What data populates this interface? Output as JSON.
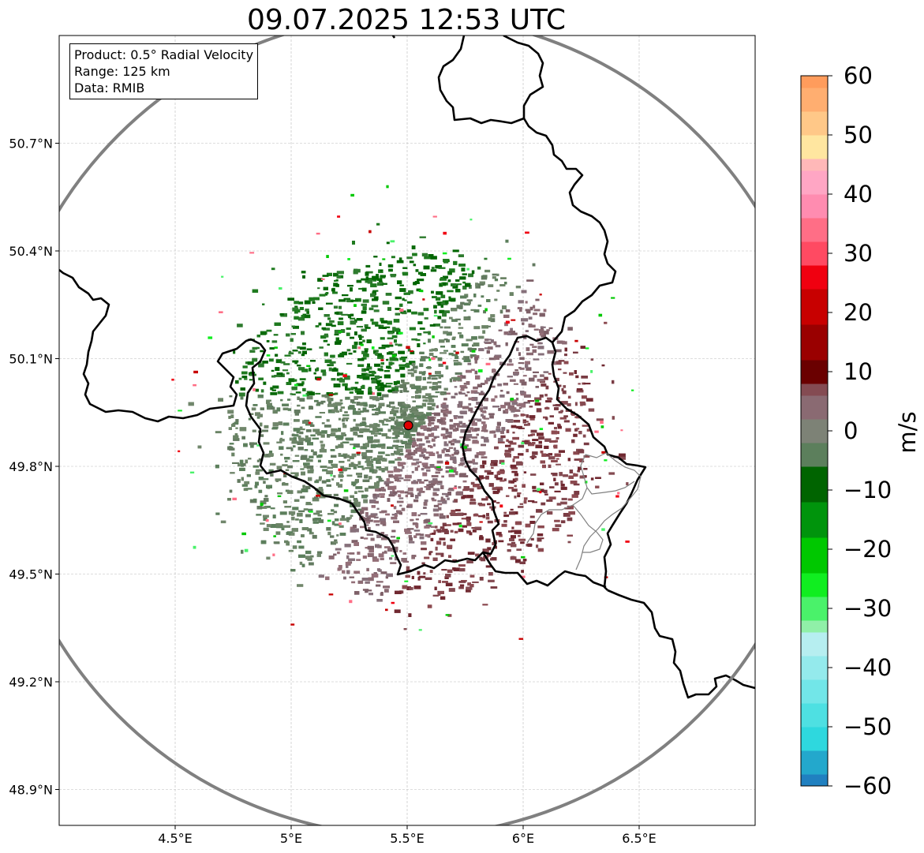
{
  "title": "09.07.2025 12:53 UTC",
  "info_box": {
    "product": "Product: 0.5° Radial Velocity",
    "range": "Range: 125 km",
    "data": "Data: RMIB"
  },
  "map": {
    "lon_range": [
      4.0,
      7.0
    ],
    "lat_range": [
      48.8,
      51.0
    ],
    "x_ticks": [
      {
        "lon": 4.5,
        "label": "4.5°E"
      },
      {
        "lon": 5.0,
        "label": "5°E"
      },
      {
        "lon": 5.5,
        "label": "5.5°E"
      },
      {
        "lon": 6.0,
        "label": "6°E"
      },
      {
        "lon": 6.5,
        "label": "6.5°E"
      }
    ],
    "y_ticks": [
      {
        "lat": 50.7,
        "label": "50.7°N"
      },
      {
        "lat": 50.4,
        "label": "50.4°N"
      },
      {
        "lat": 50.1,
        "label": "50.1°N"
      },
      {
        "lat": 49.8,
        "label": "49.8°N"
      },
      {
        "lat": 49.5,
        "label": "49.5°N"
      },
      {
        "lat": 49.2,
        "label": "49.2°N"
      },
      {
        "lat": 48.9,
        "label": "48.9°N"
      }
    ],
    "radar_site": {
      "lon": 5.505,
      "lat": 49.914
    },
    "range_km": 125
  },
  "colorbar": {
    "label": "m/s",
    "min": -60,
    "max": 60,
    "ticks": [
      {
        "value": 60,
        "label": "60"
      },
      {
        "value": 50,
        "label": "50"
      },
      {
        "value": 40,
        "label": "40"
      },
      {
        "value": 30,
        "label": "30"
      },
      {
        "value": 20,
        "label": "20"
      },
      {
        "value": 10,
        "label": "10"
      },
      {
        "value": 0,
        "label": "0"
      },
      {
        "value": -10,
        "label": "−10"
      },
      {
        "value": -20,
        "label": "−20"
      },
      {
        "value": -30,
        "label": "−30"
      },
      {
        "value": -40,
        "label": "−40"
      },
      {
        "value": -50,
        "label": "−50"
      },
      {
        "value": -60,
        "label": "−60"
      }
    ],
    "stops": [
      {
        "from": -60,
        "to": -58,
        "color": "#2080c0"
      },
      {
        "from": -58,
        "to": -54,
        "color": "#23a8cc"
      },
      {
        "from": -54,
        "to": -50,
        "color": "#2ed8de"
      },
      {
        "from": -50,
        "to": -46,
        "color": "#4ee0e2"
      },
      {
        "from": -46,
        "to": -42,
        "color": "#72e6e8"
      },
      {
        "from": -42,
        "to": -38,
        "color": "#94eaec"
      },
      {
        "from": -38,
        "to": -34,
        "color": "#b6eef0"
      },
      {
        "from": -34,
        "to": -32,
        "color": "#90f0a8"
      },
      {
        "from": -32,
        "to": -28,
        "color": "#4af26a"
      },
      {
        "from": -28,
        "to": -24,
        "color": "#10ee20"
      },
      {
        "from": -24,
        "to": -18,
        "color": "#00c800"
      },
      {
        "from": -18,
        "to": -12,
        "color": "#00940c"
      },
      {
        "from": -12,
        "to": -6,
        "color": "#006400"
      },
      {
        "from": -6,
        "to": -2,
        "color": "#5c7f5c"
      },
      {
        "from": -2,
        "to": 2,
        "color": "#7d8276"
      },
      {
        "from": 2,
        "to": 6,
        "color": "#8a6a72"
      },
      {
        "from": 6,
        "to": 8,
        "color": "#844b52"
      },
      {
        "from": 8,
        "to": 12,
        "color": "#6a0000"
      },
      {
        "from": 12,
        "to": 18,
        "color": "#9a0000"
      },
      {
        "from": 18,
        "to": 24,
        "color": "#c80000"
      },
      {
        "from": 24,
        "to": 28,
        "color": "#f00010"
      },
      {
        "from": 28,
        "to": 32,
        "color": "#ff4a62"
      },
      {
        "from": 32,
        "to": 36,
        "color": "#ff6e86"
      },
      {
        "from": 36,
        "to": 40,
        "color": "#ff8cb0"
      },
      {
        "from": 40,
        "to": 44,
        "color": "#ffa6c4"
      },
      {
        "from": 44,
        "to": 46,
        "color": "#ffb8b8"
      },
      {
        "from": 46,
        "to": 50,
        "color": "#ffe6a0"
      },
      {
        "from": 50,
        "to": 54,
        "color": "#ffc888"
      },
      {
        "from": 54,
        "to": 58,
        "color": "#ffae70"
      },
      {
        "from": 58,
        "to": 60,
        "color": "#ff9c5c"
      }
    ]
  },
  "colors": {
    "border": "#000000",
    "grid": "#bbbbbb",
    "range_ring": "#808080",
    "radar_marker": "#e00000"
  }
}
